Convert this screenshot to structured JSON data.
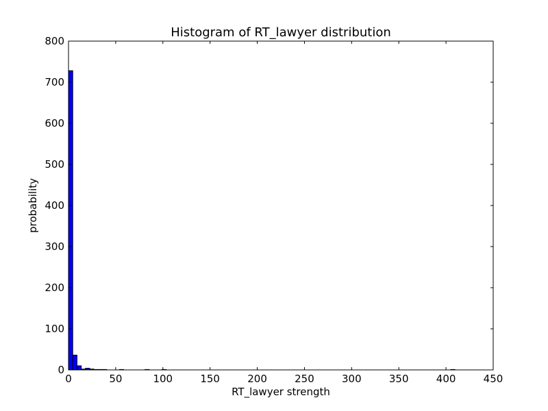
{
  "chart_data": {
    "type": "bar",
    "title": "Histogram of RT_lawyer  distribution",
    "xlabel": "RT_lawyer  strength",
    "ylabel": "probability",
    "xlim": [
      0,
      450
    ],
    "ylim": [
      0,
      800
    ],
    "xticks": [
      0,
      50,
      100,
      150,
      200,
      250,
      300,
      350,
      400,
      450
    ],
    "yticks": [
      0,
      100,
      200,
      300,
      400,
      500,
      600,
      700,
      800
    ],
    "xtick_labels": [
      "0",
      "50",
      "100",
      "150",
      "200",
      "250",
      "300",
      "350",
      "400",
      "450"
    ],
    "ytick_labels": [
      "0",
      "100",
      "200",
      "300",
      "400",
      "500",
      "600",
      "700",
      "800"
    ],
    "grid": false,
    "bar_color": "#0000ff",
    "edge_color": "#000000",
    "bins": [
      {
        "x0": 0,
        "x1": 4.5,
        "count": 728
      },
      {
        "x0": 4.5,
        "x1": 9.0,
        "count": 36
      },
      {
        "x0": 9.0,
        "x1": 13.5,
        "count": 10
      },
      {
        "x0": 13.5,
        "x1": 18.0,
        "count": 2
      },
      {
        "x0": 18.0,
        "x1": 22.5,
        "count": 4
      },
      {
        "x0": 22.5,
        "x1": 27.0,
        "count": 2
      },
      {
        "x0": 27.0,
        "x1": 31.5,
        "count": 1
      },
      {
        "x0": 31.5,
        "x1": 36.0,
        "count": 1
      },
      {
        "x0": 36.0,
        "x1": 40.5,
        "count": 1
      },
      {
        "x0": 54.0,
        "x1": 58.5,
        "count": 1
      },
      {
        "x0": 81.0,
        "x1": 85.5,
        "count": 1
      },
      {
        "x0": 99.0,
        "x1": 103.5,
        "count": 1
      },
      {
        "x0": 405.0,
        "x1": 409.5,
        "count": 1
      }
    ]
  }
}
